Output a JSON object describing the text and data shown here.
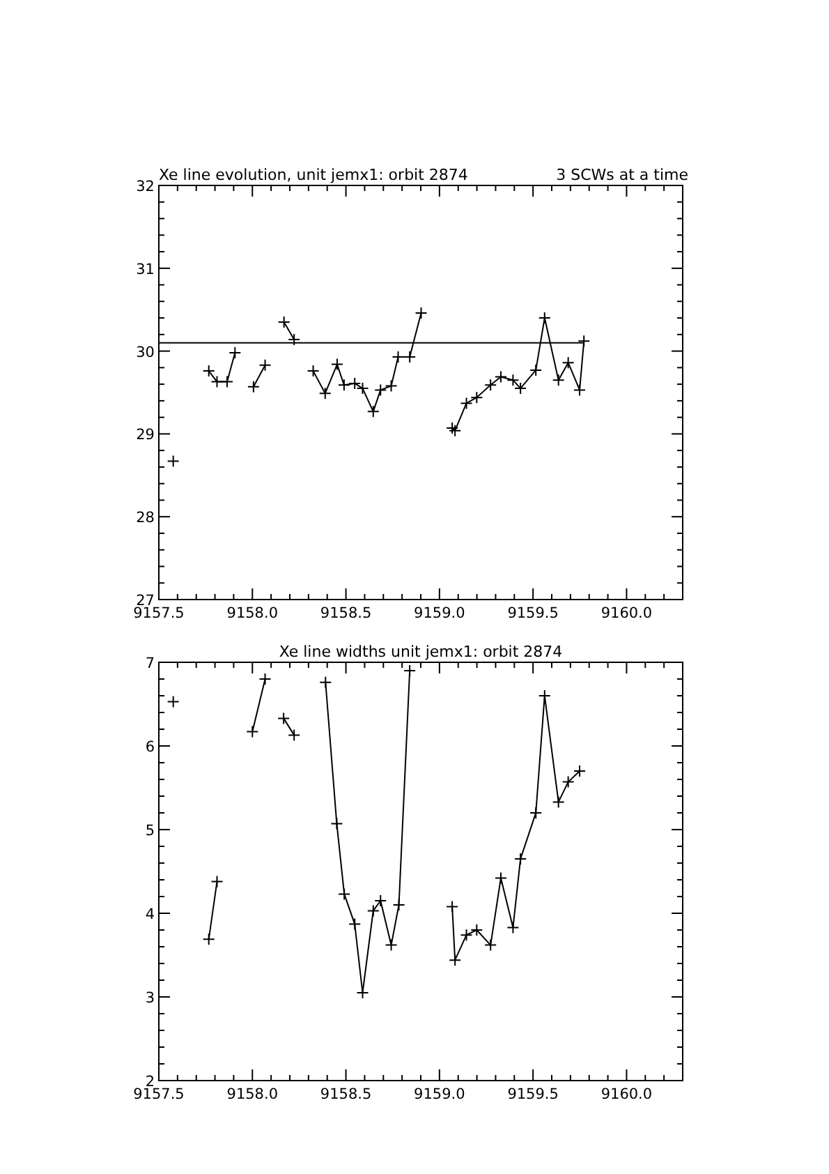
{
  "chart_data": [
    {
      "type": "line",
      "title": "Xe line evolution, unit jemx1: orbit 2874",
      "annotations": [
        "3 SCWs at a time"
      ],
      "xlim": [
        9157.5,
        9160.3
      ],
      "ylim": [
        27,
        32
      ],
      "marker": "cross",
      "grid": false,
      "xticks": [
        {
          "value": 9157.5,
          "label": "9157.5"
        },
        {
          "value": 9157.6,
          "label": null
        },
        {
          "value": 9157.7,
          "label": null
        },
        {
          "value": 9157.8,
          "label": null
        },
        {
          "value": 9157.9,
          "label": null
        },
        {
          "value": 9158,
          "label": "9158.0"
        },
        {
          "value": 9158.1,
          "label": null
        },
        {
          "value": 9158.2,
          "label": null
        },
        {
          "value": 9158.3,
          "label": null
        },
        {
          "value": 9158.4,
          "label": null
        },
        {
          "value": 9158.5,
          "label": "9158.5"
        },
        {
          "value": 9158.6,
          "label": null
        },
        {
          "value": 9158.7,
          "label": null
        },
        {
          "value": 9158.8,
          "label": null
        },
        {
          "value": 9158.9,
          "label": null
        },
        {
          "value": 9159,
          "label": "9159.0"
        },
        {
          "value": 9159.1,
          "label": null
        },
        {
          "value": 9159.2,
          "label": null
        },
        {
          "value": 9159.3,
          "label": null
        },
        {
          "value": 9159.4,
          "label": null
        },
        {
          "value": 9159.5,
          "label": "9159.5"
        },
        {
          "value": 9159.6,
          "label": null
        },
        {
          "value": 9159.7,
          "label": null
        },
        {
          "value": 9159.8,
          "label": null
        },
        {
          "value": 9159.9,
          "label": null
        },
        {
          "value": 9160,
          "label": "9160.0"
        },
        {
          "value": 9160.1,
          "label": null
        },
        {
          "value": 9160.2,
          "label": null
        }
      ],
      "yticks": [
        27,
        {
          "value": 27.2,
          "label": null
        },
        {
          "value": 27.4,
          "label": null
        },
        {
          "value": 27.6,
          "label": null
        },
        {
          "value": 27.8,
          "label": null
        },
        28,
        {
          "value": 28.2,
          "label": null
        },
        {
          "value": 28.4,
          "label": null
        },
        {
          "value": 28.6,
          "label": null
        },
        {
          "value": 28.8,
          "label": null
        },
        29,
        {
          "value": 29.2,
          "label": null
        },
        {
          "value": 29.4,
          "label": null
        },
        {
          "value": 29.6,
          "label": null
        },
        {
          "value": 29.8,
          "label": null
        },
        30,
        {
          "value": 30.2,
          "label": null
        },
        {
          "value": 30.4,
          "label": null
        },
        {
          "value": 30.6,
          "label": null
        },
        {
          "value": 30.8,
          "label": null
        },
        31,
        {
          "value": 31.2,
          "label": null
        },
        {
          "value": 31.4,
          "label": null
        },
        {
          "value": 31.6,
          "label": null
        },
        {
          "value": 31.8,
          "label": null
        },
        32
      ],
      "series": [
        {
          "color": "#000000",
          "x": [
            9157.577,
            9157.62,
            9157.767,
            9157.811,
            9157.865,
            9157.907,
            9157.95,
            9158.006,
            9158.068,
            9158.12,
            9158.169,
            9158.223,
            9158.27,
            9158.325,
            9158.389,
            9158.453,
            9158.49,
            9158.547,
            9158.589,
            9158.646,
            9158.685,
            9158.742,
            9158.779,
            9158.841,
            9158.902,
            9158.98,
            9159.068,
            9159.083,
            9159.144,
            9159.199,
            9159.273,
            9159.328,
            9159.393,
            9159.433,
            9159.515,
            9159.562,
            9159.636,
            9159.688,
            9159.749,
            9159.772
          ],
          "values": [
            28.67,
            null,
            29.76,
            29.63,
            29.63,
            29.98,
            null,
            29.57,
            29.83,
            null,
            30.35,
            30.14,
            null,
            29.76,
            29.49,
            29.84,
            29.59,
            29.61,
            29.55,
            29.27,
            29.53,
            29.58,
            29.93,
            29.93,
            30.46,
            null,
            29.07,
            29.04,
            29.37,
            29.44,
            29.59,
            29.69,
            29.65,
            29.55,
            29.77,
            30.4,
            29.65,
            29.86,
            29.53,
            30.12
          ]
        },
        {
          "type": "line",
          "marker": "none",
          "color": "#000000",
          "x": [
            9157.5,
            9159.772
          ],
          "values": [
            30.1,
            30.1
          ]
        }
      ]
    },
    {
      "type": "line",
      "title": "Xe line widths unit jemx1: orbit 2874",
      "xlim": [
        9157.5,
        9160.3
      ],
      "ylim": [
        2,
        7
      ],
      "marker": "cross",
      "grid": false,
      "xticks": [
        {
          "value": 9157.5,
          "label": "9157.5"
        },
        {
          "value": 9157.6,
          "label": null
        },
        {
          "value": 9157.7,
          "label": null
        },
        {
          "value": 9157.8,
          "label": null
        },
        {
          "value": 9157.9,
          "label": null
        },
        {
          "value": 9158,
          "label": "9158.0"
        },
        {
          "value": 9158.1,
          "label": null
        },
        {
          "value": 9158.2,
          "label": null
        },
        {
          "value": 9158.3,
          "label": null
        },
        {
          "value": 9158.4,
          "label": null
        },
        {
          "value": 9158.5,
          "label": "9158.5"
        },
        {
          "value": 9158.6,
          "label": null
        },
        {
          "value": 9158.7,
          "label": null
        },
        {
          "value": 9158.8,
          "label": null
        },
        {
          "value": 9158.9,
          "label": null
        },
        {
          "value": 9159,
          "label": "9159.0"
        },
        {
          "value": 9159.1,
          "label": null
        },
        {
          "value": 9159.2,
          "label": null
        },
        {
          "value": 9159.3,
          "label": null
        },
        {
          "value": 9159.4,
          "label": null
        },
        {
          "value": 9159.5,
          "label": "9159.5"
        },
        {
          "value": 9159.6,
          "label": null
        },
        {
          "value": 9159.7,
          "label": null
        },
        {
          "value": 9159.8,
          "label": null
        },
        {
          "value": 9159.9,
          "label": null
        },
        {
          "value": 9160,
          "label": "9160.0"
        },
        {
          "value": 9160.1,
          "label": null
        },
        {
          "value": 9160.2,
          "label": null
        }
      ],
      "yticks": [
        2,
        {
          "value": 2.2,
          "label": null
        },
        {
          "value": 2.4,
          "label": null
        },
        {
          "value": 2.6,
          "label": null
        },
        {
          "value": 2.8,
          "label": null
        },
        3,
        {
          "value": 3.2,
          "label": null
        },
        {
          "value": 3.4,
          "label": null
        },
        {
          "value": 3.6,
          "label": null
        },
        {
          "value": 3.8,
          "label": null
        },
        4,
        {
          "value": 4.2,
          "label": null
        },
        {
          "value": 4.4,
          "label": null
        },
        {
          "value": 4.6,
          "label": null
        },
        {
          "value": 4.8,
          "label": null
        },
        5,
        {
          "value": 5.2,
          "label": null
        },
        {
          "value": 5.4,
          "label": null
        },
        {
          "value": 5.6,
          "label": null
        },
        {
          "value": 5.8,
          "label": null
        },
        6,
        {
          "value": 6.2,
          "label": null
        },
        {
          "value": 6.4,
          "label": null
        },
        {
          "value": 6.6,
          "label": null
        },
        {
          "value": 6.8,
          "label": null
        },
        7
      ],
      "series": [
        {
          "color": "#000000",
          "x": [
            9157.577,
            9157.62,
            9157.767,
            9157.811,
            9157.9,
            9158.0,
            9158.068,
            9158.12,
            9158.167,
            9158.223,
            9158.3,
            9158.391,
            9158.451,
            9158.491,
            9158.547,
            9158.589,
            9158.646,
            9158.685,
            9158.742,
            9158.783,
            9158.841,
            9158.98,
            9159.068,
            9159.083,
            9159.144,
            9159.199,
            9159.273,
            9159.328,
            9159.393,
            9159.433,
            9159.515,
            9159.562,
            9159.636,
            9159.688,
            9159.749
          ],
          "values": [
            6.53,
            null,
            3.69,
            4.38,
            null,
            6.17,
            6.8,
            null,
            6.33,
            6.13,
            null,
            6.76,
            5.07,
            4.23,
            3.87,
            3.05,
            4.03,
            4.15,
            3.62,
            4.1,
            6.9,
            null,
            4.08,
            3.44,
            3.74,
            3.8,
            3.62,
            4.42,
            3.83,
            4.65,
            5.2,
            6.6,
            5.33,
            5.57,
            5.7
          ]
        }
      ]
    }
  ]
}
